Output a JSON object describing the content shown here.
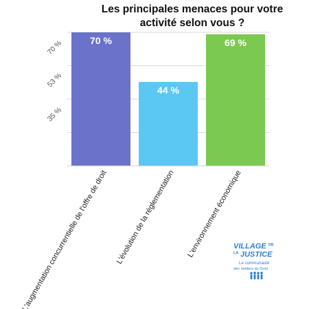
{
  "chart_data": {
    "type": "bar",
    "title_lines": [
      "Les principales menaces pour votre",
      "activité selon vous ?"
    ],
    "categories": [
      "L'augmentation concurrentielle de l'offre de droit",
      "L'évolution de la réglementation",
      "L'environnement économique"
    ],
    "values": [
      70,
      44,
      69
    ],
    "value_labels": [
      "70 %",
      "44 %",
      "69 %"
    ],
    "colors": [
      "#6b72c9",
      "#5bc8f3",
      "#7bc950"
    ],
    "y_ticks": [
      {
        "value": 35,
        "label": "35 %"
      },
      {
        "value": 53,
        "label": "53 %"
      },
      {
        "value": 70,
        "label": "70 %"
      }
    ],
    "ylim": [
      0,
      70
    ],
    "grid": true,
    "legend": "none"
  },
  "logo": {
    "line1": "VILLAGE",
    "de": "DE",
    "la": "LA",
    "line2": "JUSTICE",
    "tagline1": "Le communauté",
    "tagline2": "des métiers du Droit",
    "color": "#2f7fd0"
  }
}
